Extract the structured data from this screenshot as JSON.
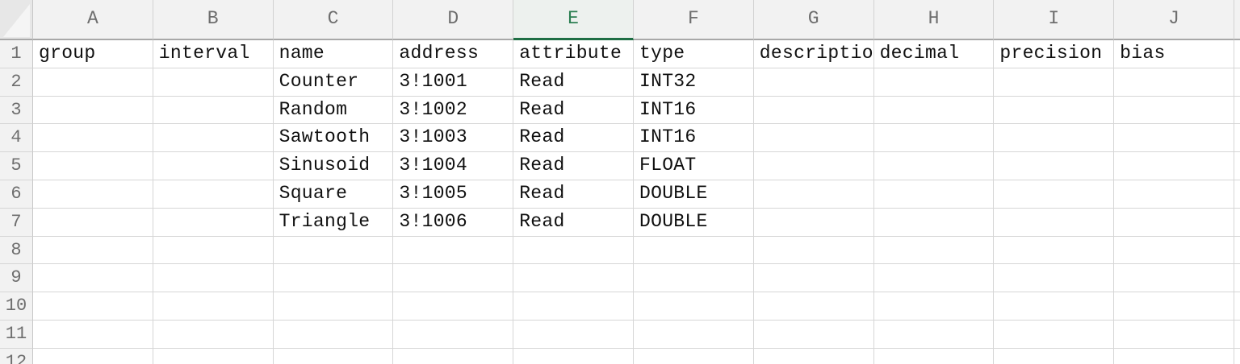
{
  "app": {
    "kind": "spreadsheet-grid"
  },
  "colors": {
    "accent_green": "#2c7f52",
    "accent_green_underline": "#1e6e44",
    "header_background": "#f2f2f2",
    "selected_header_background": "#edf1ee",
    "header_text": "#6e6e6e",
    "header_bottom_line": "#a8a8a8",
    "grid_line": "#d6d6d6",
    "cell_text": "#101010"
  },
  "columns": [
    {
      "letter": "A",
      "selected": false
    },
    {
      "letter": "B",
      "selected": false
    },
    {
      "letter": "C",
      "selected": false
    },
    {
      "letter": "D",
      "selected": false
    },
    {
      "letter": "E",
      "selected": true
    },
    {
      "letter": "F",
      "selected": false
    },
    {
      "letter": "G",
      "selected": false
    },
    {
      "letter": "H",
      "selected": false
    },
    {
      "letter": "I",
      "selected": false
    },
    {
      "letter": "J",
      "selected": false
    }
  ],
  "rows": [
    {
      "number": "1",
      "cells": [
        "group",
        "interval",
        "name",
        "address",
        "attribute",
        "type",
        "description",
        "decimal",
        "precision",
        "bias"
      ]
    },
    {
      "number": "2",
      "cells": [
        "",
        "",
        "Counter",
        "3!1001",
        "Read",
        "INT32",
        "",
        "",
        "",
        ""
      ]
    },
    {
      "number": "3",
      "cells": [
        "",
        "",
        "Random",
        "3!1002",
        "Read",
        "INT16",
        "",
        "",
        "",
        ""
      ]
    },
    {
      "number": "4",
      "cells": [
        "",
        "",
        "Sawtooth",
        "3!1003",
        "Read",
        "INT16",
        "",
        "",
        "",
        ""
      ]
    },
    {
      "number": "5",
      "cells": [
        "",
        "",
        "Sinusoid",
        "3!1004",
        "Read",
        "FLOAT",
        "",
        "",
        "",
        ""
      ]
    },
    {
      "number": "6",
      "cells": [
        "",
        "",
        "Square",
        "3!1005",
        "Read",
        "DOUBLE",
        "",
        "",
        "",
        ""
      ]
    },
    {
      "number": "7",
      "cells": [
        "",
        "",
        "Triangle",
        "3!1006",
        "Read",
        "DOUBLE",
        "",
        "",
        "",
        ""
      ]
    },
    {
      "number": "8",
      "cells": [
        "",
        "",
        "",
        "",
        "",
        "",
        "",
        "",
        "",
        ""
      ]
    },
    {
      "number": "9",
      "cells": [
        "",
        "",
        "",
        "",
        "",
        "",
        "",
        "",
        "",
        ""
      ]
    },
    {
      "number": "10",
      "cells": [
        "",
        "",
        "",
        "",
        "",
        "",
        "",
        "",
        "",
        ""
      ]
    },
    {
      "number": "11",
      "cells": [
        "",
        "",
        "",
        "",
        "",
        "",
        "",
        "",
        "",
        ""
      ]
    },
    {
      "number": "12",
      "cells": [
        "",
        "",
        "",
        "",
        "",
        "",
        "",
        "",
        "",
        ""
      ]
    }
  ]
}
